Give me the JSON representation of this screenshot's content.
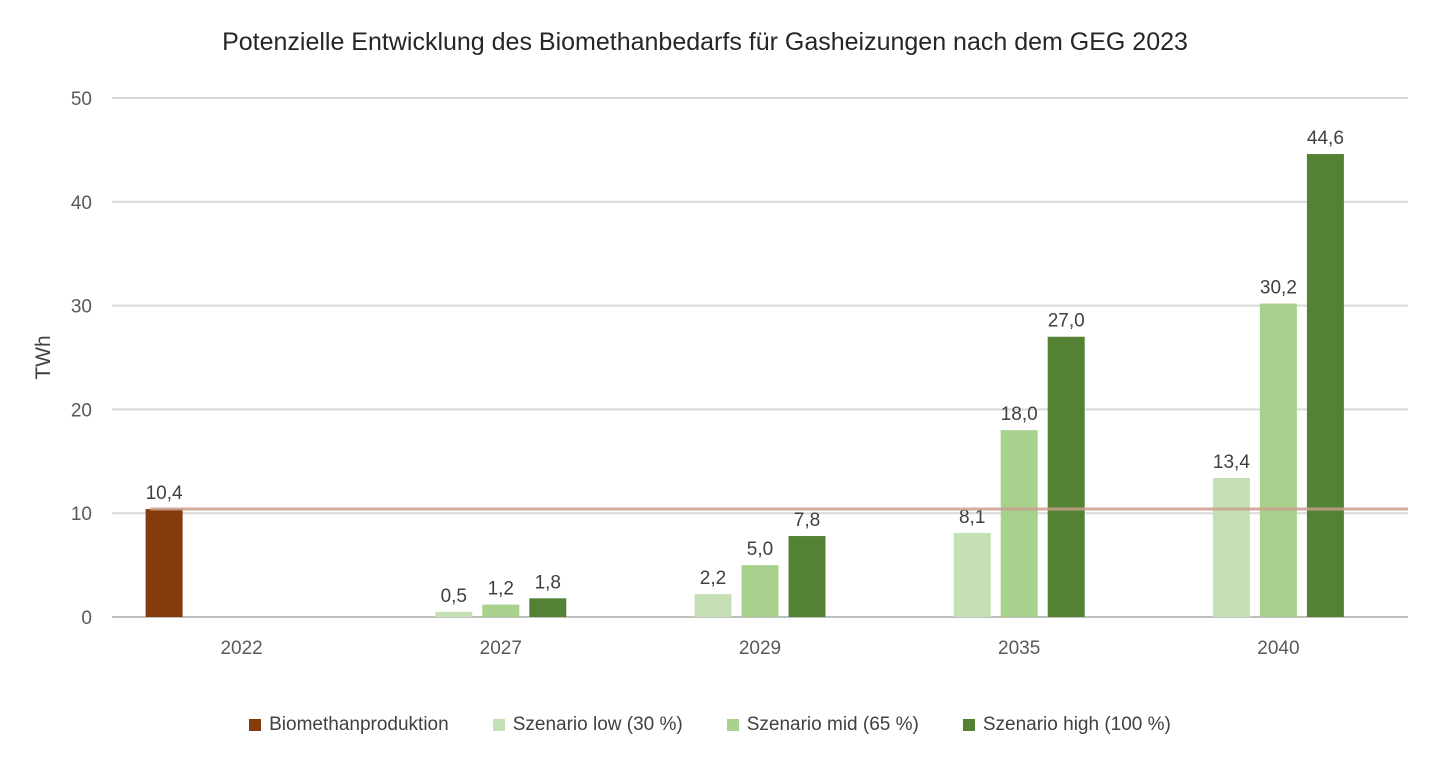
{
  "chart_data": {
    "type": "bar",
    "title": "Potenzielle Entwicklung des Biomethanbedarfs für Gasheizungen nach dem GEG 2023",
    "xlabel": "",
    "ylabel": "TWh",
    "ylim": [
      0,
      50
    ],
    "yticks": [
      0,
      10,
      20,
      30,
      40,
      50
    ],
    "categories": [
      "2022",
      "2027",
      "2029",
      "2035",
      "2040"
    ],
    "series": [
      {
        "name": "Biomethanproduktion",
        "color": "#843C0C",
        "values": [
          10.4,
          null,
          null,
          null,
          null
        ],
        "labels": [
          "10,4",
          "",
          "",
          "",
          ""
        ]
      },
      {
        "name": "Szenario low (30 %)",
        "color": "#C5E0B4",
        "values": [
          null,
          0.5,
          2.2,
          8.1,
          13.4
        ],
        "labels": [
          "",
          "0,5",
          "2,2",
          "8,1",
          "13,4"
        ]
      },
      {
        "name": "Szenario mid (65 %)",
        "color": "#A9D18E",
        "values": [
          null,
          1.2,
          5.0,
          18.0,
          30.2
        ],
        "labels": [
          "",
          "1,2",
          "5,0",
          "18,0",
          "30,2"
        ]
      },
      {
        "name": "Szenario high (100 %)",
        "color": "#548235",
        "values": [
          null,
          1.8,
          7.8,
          27.0,
          44.6
        ],
        "labels": [
          "",
          "1,8",
          "7,8",
          "27,0",
          "44,6"
        ]
      }
    ],
    "reference_line": {
      "value": 10.4,
      "color": "#C9A08E"
    },
    "grid": true,
    "legend_position": "bottom"
  }
}
